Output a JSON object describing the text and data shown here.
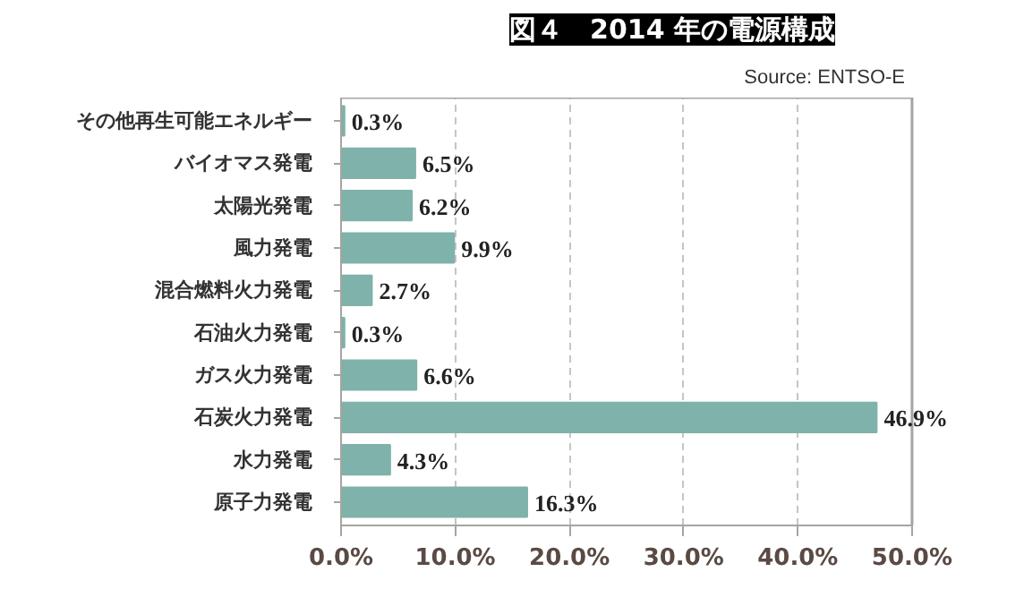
{
  "chart_data": {
    "type": "bar",
    "orientation": "horizontal",
    "title": "図４　2014 年の電源構成",
    "annotations": [
      "Source: ENTSO-E"
    ],
    "categories": [
      "その他再生可能エネルギー",
      "バイオマス発電",
      "太陽光発電",
      "風力発電",
      "混合燃料火力発電",
      "石油火力発電",
      "ガス火力発電",
      "石炭火力発電",
      "水力発電",
      "原子力発電"
    ],
    "values": [
      0.3,
      6.5,
      6.2,
      9.9,
      2.7,
      0.3,
      6.6,
      46.9,
      4.3,
      16.3
    ],
    "value_labels": [
      "0.3%",
      "6.5%",
      "6.2%",
      "9.9%",
      "2.7%",
      "0.3%",
      "6.6%",
      "46.9%",
      "4.3%",
      "16.3%"
    ],
    "color": "#7fb2aa",
    "xlim": [
      0,
      50
    ],
    "xticks": [
      {
        "value": 0,
        "label": "0.0%"
      },
      {
        "value": 10,
        "label": "10.0%"
      },
      {
        "value": 20,
        "label": "20.0%"
      },
      {
        "value": 30,
        "label": "30.0%"
      },
      {
        "value": 40,
        "label": "40.0%"
      },
      {
        "value": 50,
        "label": "50.0%"
      }
    ],
    "grid": "x"
  }
}
